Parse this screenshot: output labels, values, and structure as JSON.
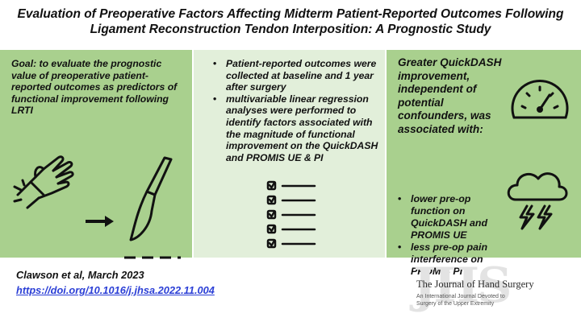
{
  "title": {
    "line1": "Evaluation of Preoperative Factors Affecting Midterm Patient-Reported Outcomes Following",
    "line2": "Ligament Reconstruction Tendon Interposition: A Prognostic Study"
  },
  "left_panel": {
    "goal": "Goal: to evaluate the prognostic value of preoperative patient-reported outcomes as predictors of functional improvement following LRTI",
    "icons": [
      "hand-wrist-pain-icon",
      "arrow-right-icon",
      "scalpel-icon",
      "dashed-incision-icon"
    ]
  },
  "middle_panel": {
    "bullets": [
      "Patient-reported outcomes were collected at baseline and 1 year after surgery",
      "multivariable linear regression analyses were performed to identify factors associated with the magnitude of functional improvement on the QuickDASH and PROMIS UE  & PI"
    ],
    "icons": [
      "checklist-icon"
    ]
  },
  "right_panel": {
    "heading": "Greater QuickDASH improvement, independent of potential confounders, was associated with:",
    "bullets": [
      "lower pre-op function on QuickDASH and PROMIS UE",
      "less pre-op pain interference on PROMIS PI"
    ],
    "icons": [
      "speedometer-icon",
      "storm-cloud-icon"
    ]
  },
  "citation": {
    "author": "Clawson et al, March 2023",
    "doi": "https://doi.org/10.1016/j.jhsa.2022.11.004"
  },
  "journal": {
    "mark": "JHS",
    "name": "The Journal of Hand Surgery",
    "tagline": "An International Journal Devoted to Surgery of the Upper Extremity"
  }
}
